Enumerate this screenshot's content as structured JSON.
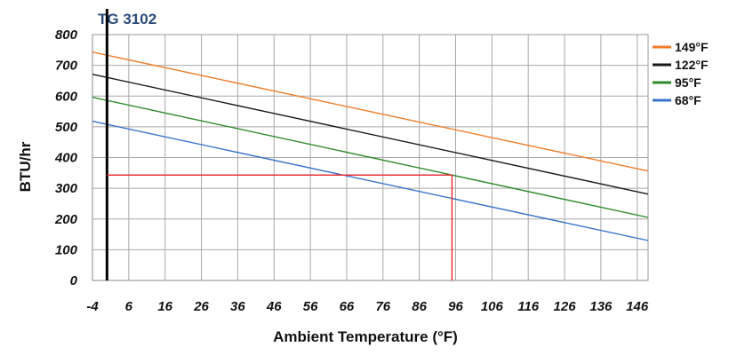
{
  "chart_data": {
    "type": "line",
    "title": "TG 3102",
    "xlabel": "Ambient Temperature (°F)",
    "ylabel": "BTU/hr",
    "xlim": [
      -4,
      149
    ],
    "ylim": [
      0,
      800
    ],
    "xticks": [
      -4,
      6,
      16,
      26,
      36,
      46,
      56,
      66,
      76,
      86,
      96,
      106,
      116,
      126,
      136,
      146
    ],
    "yticks": [
      0,
      100,
      200,
      300,
      400,
      500,
      600,
      700,
      800
    ],
    "grid": true,
    "legend_position": "top-right",
    "series": [
      {
        "name": "149°F",
        "color": "#f07d2a",
        "x": [
          -4,
          149
        ],
        "y": [
          743,
          356
        ]
      },
      {
        "name": "122°F",
        "color": "#1a1a1a",
        "x": [
          -4,
          149
        ],
        "y": [
          671,
          281
        ]
      },
      {
        "name": "95°F",
        "color": "#2f8a2c",
        "x": [
          -4,
          149
        ],
        "y": [
          596,
          205
        ]
      },
      {
        "name": "68°F",
        "color": "#3a73c9",
        "x": [
          -4,
          149
        ],
        "y": [
          518,
          130
        ]
      }
    ],
    "annotations": {
      "vertical_marker": {
        "x": 0,
        "color": "#000000"
      },
      "reference_lines": [
        {
          "from": [
            0,
            343
          ],
          "to": [
            95,
            343
          ],
          "color": "#e8313a"
        },
        {
          "from": [
            95,
            343
          ],
          "to": [
            95,
            0
          ],
          "color": "#e8313a"
        }
      ]
    }
  }
}
